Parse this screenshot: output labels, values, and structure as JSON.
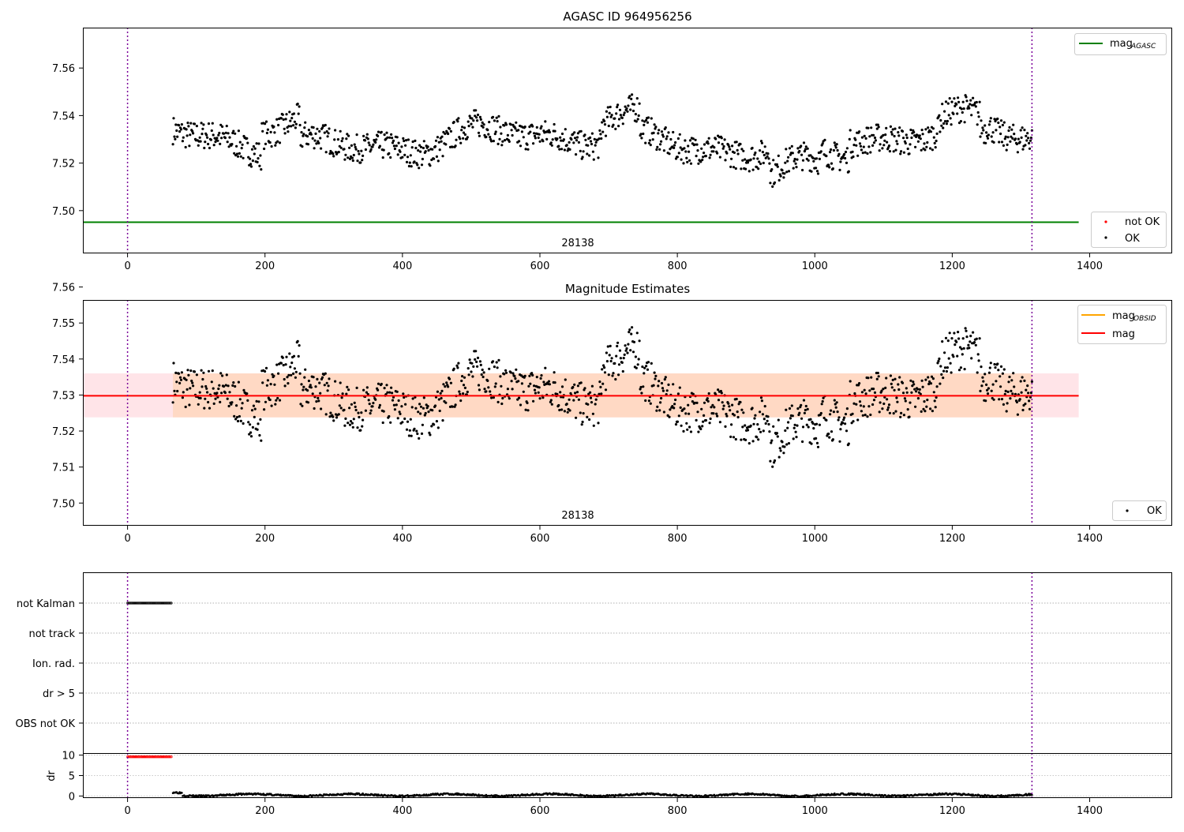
{
  "chart_data": [
    {
      "type": "scatter",
      "title": "AGASC ID 964956256",
      "xlim": [
        -65,
        1520
      ],
      "ylim": [
        7.482,
        7.577
      ],
      "xticks": [
        0,
        200,
        400,
        600,
        800,
        1000,
        1200,
        1400
      ],
      "yticks": [
        7.5,
        7.52,
        7.54,
        7.56
      ],
      "ytick_labels": [
        "7.50",
        "7.52",
        "7.54",
        "7.56"
      ],
      "annotation": "28138",
      "annotation_x": 660,
      "vlines": [
        0,
        1316
      ],
      "vline_color": "#7b0099",
      "hline": {
        "name": "mag",
        "sub": "AGASC",
        "y": 7.4951,
        "x_range": [
          -65,
          1384
        ],
        "color": "#008000"
      },
      "legend_lines": [
        {
          "name": "mag",
          "sub": "AGASC",
          "color": "#008000"
        }
      ],
      "legend_points": [
        {
          "name": "not OK",
          "color": "#ff0000"
        },
        {
          "name": "OK",
          "color": "#000000"
        }
      ],
      "points": {
        "x_range": [
          66,
          1316
        ],
        "count": 1150,
        "mean": 7.5295,
        "color": "#000000"
      }
    },
    {
      "type": "scatter",
      "title": "Magnitude Estimates",
      "xlim": [
        -65,
        1520
      ],
      "ylim": [
        7.4937,
        7.5564
      ],
      "xticks": [
        0,
        200,
        400,
        600,
        800,
        1000,
        1200,
        1400
      ],
      "yticks": [
        7.5,
        7.51,
        7.52,
        7.53,
        7.54,
        7.55,
        7.56
      ],
      "ytick_labels": [
        "7.50",
        "7.51",
        "7.52",
        "7.53",
        "7.54",
        "7.55",
        "7.56"
      ],
      "annotation": "28138",
      "annotation_x": 660,
      "vlines": [
        0,
        1316
      ],
      "vline_color": "#7b0099",
      "mag_line": {
        "y": 7.5298,
        "color": "#ff0000"
      },
      "band_pink": {
        "y": [
          7.5238,
          7.536
        ],
        "x_range": [
          -65,
          1384
        ],
        "color": "#ffe4e8"
      },
      "band_orange": {
        "y": [
          7.5238,
          7.536
        ],
        "x_range": [
          66,
          1316
        ],
        "color": "#ffd9c4"
      },
      "legend_lines": [
        {
          "name": "mag",
          "sub": "OBSID",
          "color": "#ffa500"
        },
        {
          "name": "mag",
          "sub": "",
          "color": "#ff0000"
        }
      ],
      "legend_points": [
        {
          "name": "OK",
          "color": "#000000"
        }
      ],
      "points": {
        "x_range": [
          66,
          1316
        ],
        "count": 1150,
        "mean": 7.5295,
        "color": "#000000"
      }
    },
    {
      "type": "scatter",
      "xlim": [
        -65,
        1520
      ],
      "categories": [
        "not Kalman",
        "not track",
        "Ion. rad.",
        "dr > 5",
        "OBS not OK"
      ],
      "flag_segments": [
        {
          "category": "not Kalman",
          "x_range": [
            0,
            64
          ]
        }
      ],
      "vlines": [
        0,
        1316
      ],
      "vline_color": "#7b0099"
    },
    {
      "type": "scatter",
      "ylabel": "dr",
      "xlim": [
        -65,
        1520
      ],
      "ylim": [
        -0.5,
        10.5
      ],
      "xticks": [
        0,
        200,
        400,
        600,
        800,
        1000,
        1200,
        1400
      ],
      "yticks": [
        0,
        5,
        10
      ],
      "ytick_labels": [
        "0",
        "5",
        "10"
      ],
      "red_segment": {
        "x_range": [
          0,
          64
        ],
        "y": 9.6
      },
      "black_series": {
        "x_range": [
          66,
          1316
        ],
        "mean": 0.25
      },
      "vlines": [
        0,
        1316
      ],
      "vline_color": "#7b0099"
    }
  ]
}
